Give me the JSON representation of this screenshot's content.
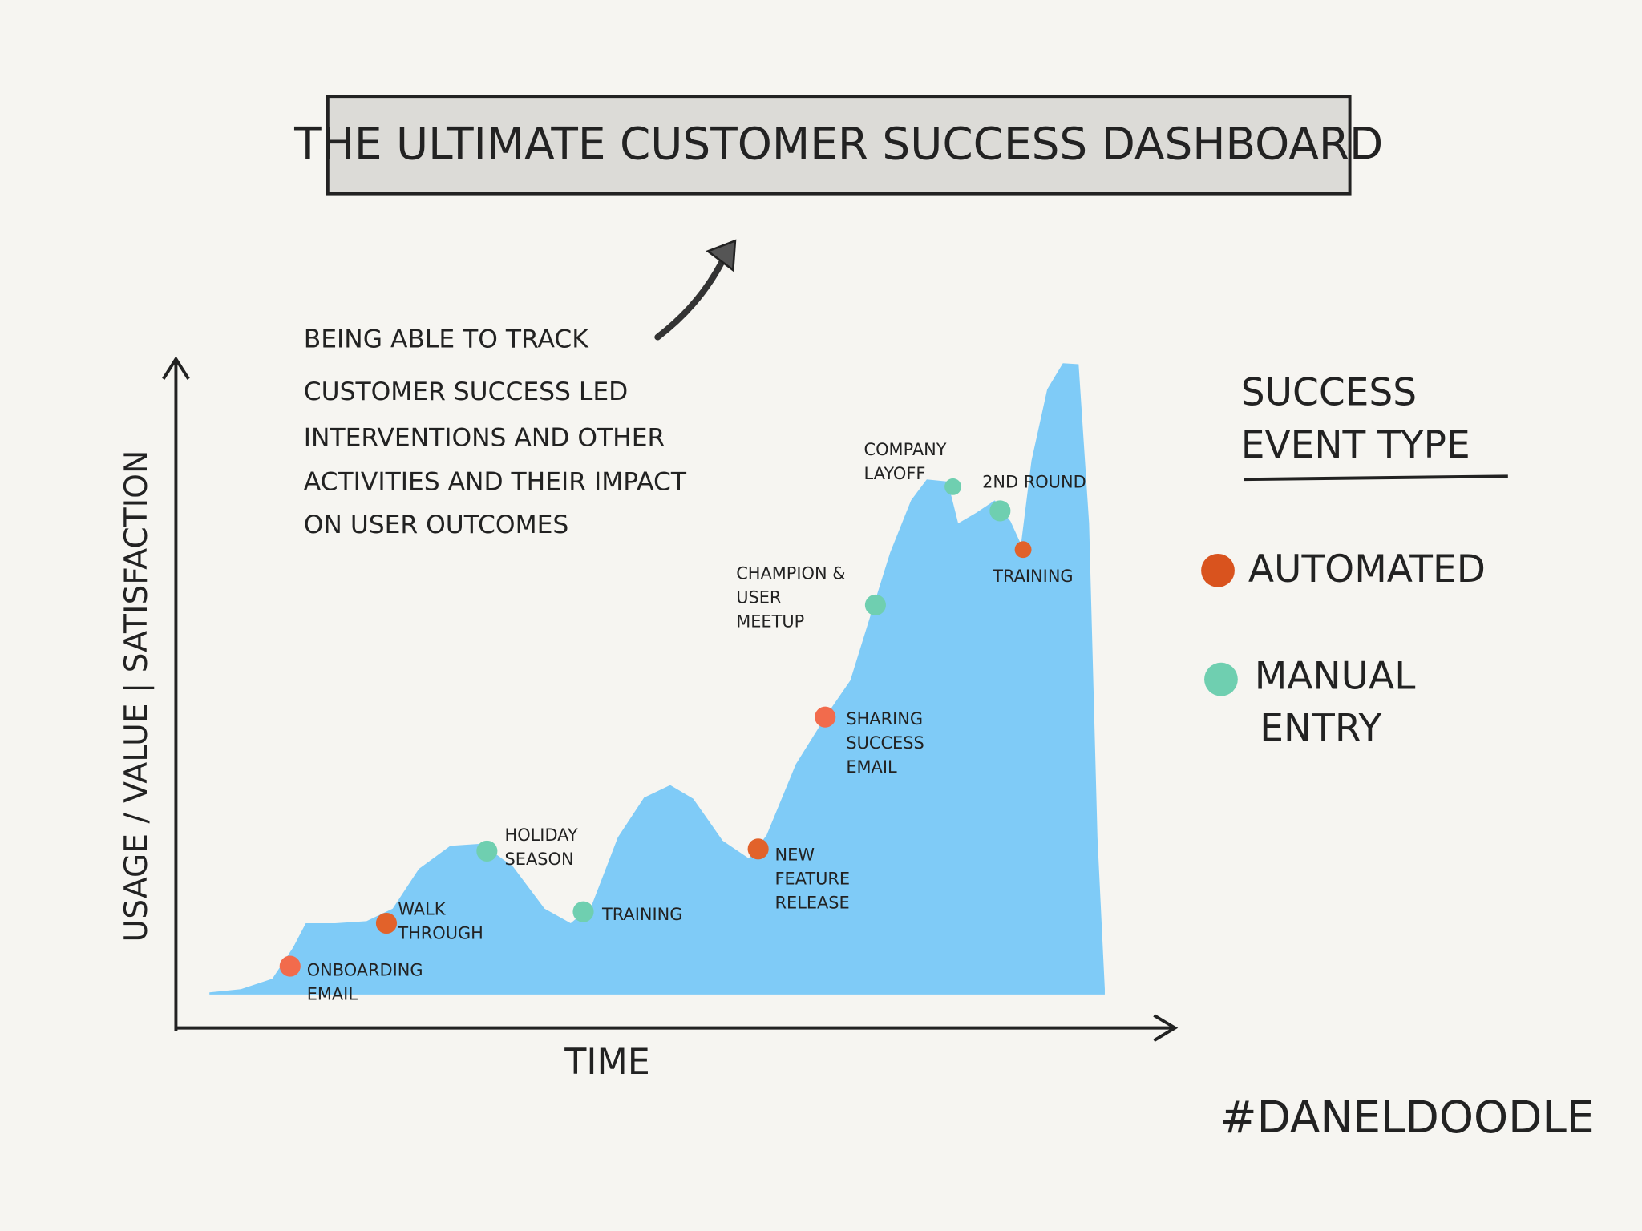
{
  "title": "THE ULTIMATE CUSTOMER SUCCESS DASHBOARD",
  "note": [
    "BEING ABLE TO TRACK",
    "CUSTOMER SUCCESS LED",
    "INTERVENTIONS AND OTHER",
    "ACTIVITIES AND THEIR IMPACT",
    "ON USER OUTCOMES"
  ],
  "y_axis_label": "USAGE / VALUE | SATISFACTION",
  "x_axis_label": "TIME",
  "events": [
    {
      "label": [
        "ONBOARDING",
        "EMAIL"
      ],
      "color": "#f26b4c"
    },
    {
      "label": [
        "WALK",
        "THROUGH"
      ],
      "color": "#e2622a"
    },
    {
      "label": [
        "HOLIDAY",
        "SEASON"
      ],
      "color": "#6fcfb0"
    },
    {
      "label": [
        "TRAINING"
      ],
      "color": "#6fcfb0"
    },
    {
      "label": [
        "NEW",
        "FEATURE",
        "RELEASE"
      ],
      "color": "#e2622a"
    },
    {
      "label": [
        "SHARING",
        "SUCCESS",
        "EMAIL"
      ],
      "color": "#f26b4c"
    },
    {
      "label": [
        "CHAMPION &",
        "USER",
        "MEETUP"
      ],
      "color": "#6fcfb0"
    },
    {
      "label": [
        "COMPANY",
        "LAYOFF"
      ],
      "color": "#6fcfb0"
    },
    {
      "label": [
        "2ND ROUND"
      ],
      "color": "#6fcfb0"
    },
    {
      "label": [
        "TRAINING"
      ],
      "color": "#e2622a"
    }
  ],
  "legend": {
    "title": [
      "SUCCESS",
      "EVENT TYPE"
    ],
    "items": [
      {
        "label": [
          "AUTOMATED"
        ],
        "color": "#d9531e"
      },
      {
        "label": [
          "MANUAL",
          "ENTRY"
        ],
        "color": "#6fcfb0"
      }
    ]
  },
  "signature": "#DANELDOODLE"
}
